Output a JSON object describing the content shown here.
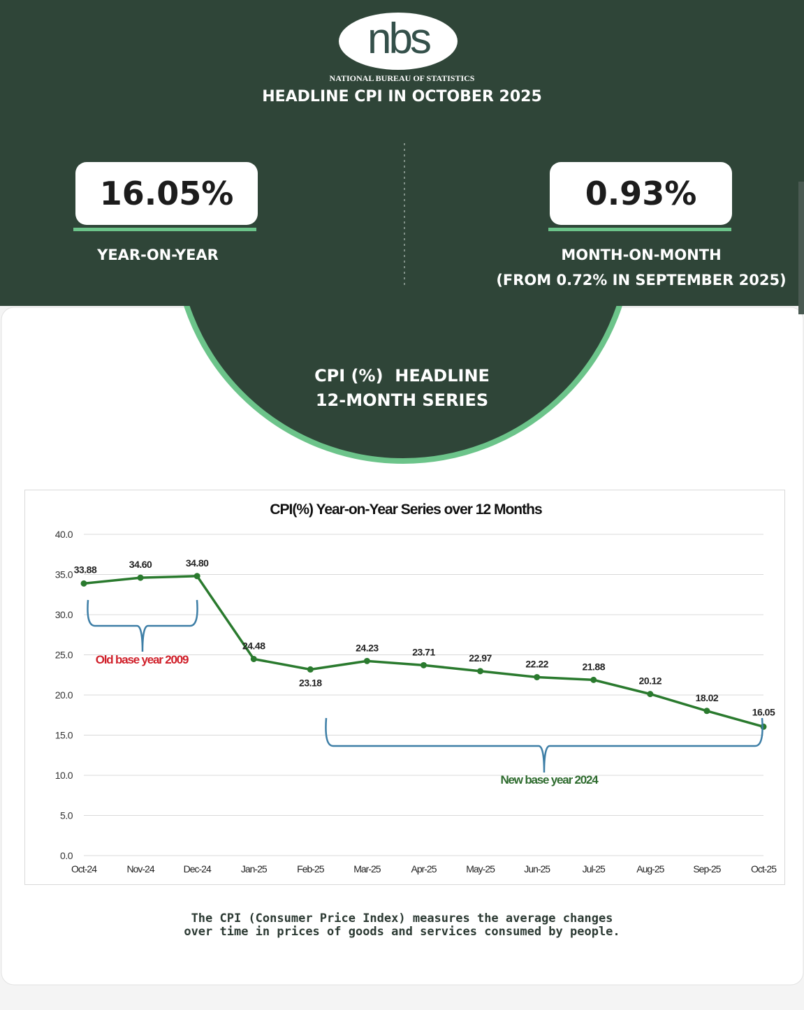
{
  "logo": {
    "text": "nbs",
    "subtitle": "NATIONAL BUREAU OF STATISTICS"
  },
  "header": {
    "title": "HEADLINE CPI IN OCTOBER 2025"
  },
  "stats": {
    "yoy": {
      "value": "16.05%",
      "label": "YEAR-ON-YEAR"
    },
    "mom": {
      "value": "0.93%",
      "label": "MONTH-ON-MONTH",
      "sublabel": "(FROM 0.72% IN SEPTEMBER 2025)"
    }
  },
  "section": {
    "line1": "CPI (%)  HEADLINE",
    "line2": "12-MONTH SERIES"
  },
  "colors": {
    "dark_green": "#2f4538",
    "accent_green": "#6cc48a",
    "line": "#2a7a2e",
    "old_base": "#d0202a",
    "new_base": "#2e6b2e",
    "bracket": "#3d7ea6"
  },
  "chart_data": {
    "type": "line",
    "title": "CPI(%) Year-on-Year Series over 12 Months",
    "categories": [
      "Oct-24",
      "Nov-24",
      "Dec-24",
      "Jan-25",
      "Feb-25",
      "Mar-25",
      "Apr-25",
      "May-25",
      "Jun-25",
      "Jul-25",
      "Aug-25",
      "Sep-25",
      "Oct-25"
    ],
    "values": [
      33.88,
      34.6,
      34.8,
      24.48,
      23.18,
      24.23,
      23.71,
      22.97,
      22.22,
      21.88,
      20.12,
      18.02,
      16.05
    ],
    "data_labels": [
      "33.88",
      "34.60",
      "34.80",
      "24.48",
      "23.18",
      "24.23",
      "23.71",
      "22.97",
      "22.22",
      "21.88",
      "20.12",
      "18.02",
      "16.05"
    ],
    "yticks": [
      "0.0",
      "5.0",
      "10.0",
      "15.0",
      "20.0",
      "25.0",
      "30.0",
      "35.0",
      "40.0"
    ],
    "ylim": [
      0,
      40
    ],
    "grid": true,
    "annotations": [
      {
        "text": "Old base year 2009",
        "range": [
          "Oct-24",
          "Dec-24"
        ]
      },
      {
        "text": "New base year 2024",
        "range": [
          "Feb-25",
          "Oct-25"
        ]
      }
    ]
  },
  "footer": {
    "line1": "The CPI (Consumer Price Index) measures the average changes",
    "line2": "over time in prices of goods and services consumed by people."
  }
}
